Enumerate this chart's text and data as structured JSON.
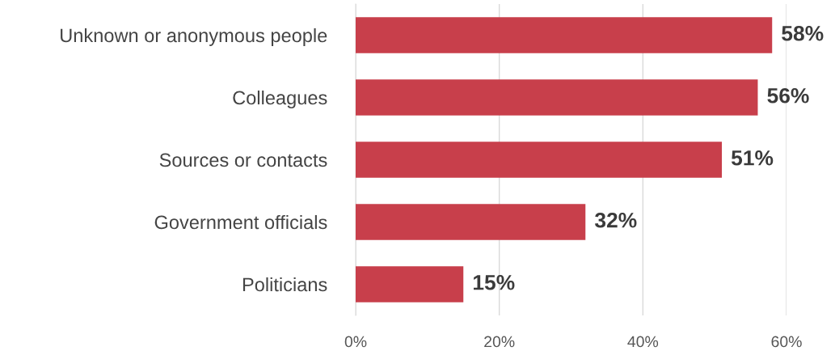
{
  "chart_data": {
    "type": "bar",
    "orientation": "horizontal",
    "categories": [
      "Unknown or anonymous people",
      "Colleagues",
      "Sources or contacts",
      "Government officials",
      "Politicians"
    ],
    "values": [
      58,
      56,
      51,
      32,
      15
    ],
    "color": "#c83f4b",
    "value_labels": [
      "58%",
      "56%",
      "51%",
      "32%",
      "15%"
    ],
    "xlim": [
      0,
      60
    ],
    "xticks": [
      {
        "value": 0,
        "label": "0%"
      },
      {
        "value": 20,
        "label": "20%"
      },
      {
        "value": 40,
        "label": "40%"
      },
      {
        "value": 60,
        "label": "60%"
      }
    ],
    "grid": "x"
  }
}
